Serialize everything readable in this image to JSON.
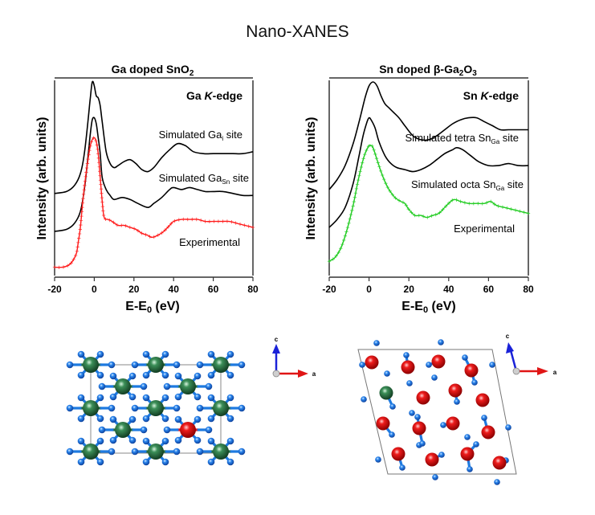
{
  "figure": {
    "title": "Nano-XANES"
  },
  "chart_data": [
    {
      "type": "line",
      "title": "Ga doped SnO2",
      "title_main": "Ga doped SnO",
      "title_sub": "2",
      "edge_label_prefix": "Ga ",
      "edge_label_italic": "K",
      "edge_label_suffix": "-edge",
      "xlabel_main": "E-E",
      "xlabel_sub": "0",
      "xlabel_suffix": " (eV)",
      "xlabel": "E-E0 (eV)",
      "ylabel": "Intensity (arb. units)",
      "xlim": [
        -20,
        80
      ],
      "ylim": [
        0,
        1
      ],
      "xticks": [
        "-20",
        "0",
        "20",
        "40",
        "60",
        "80"
      ],
      "xtick_values": [
        -20,
        0,
        20,
        40,
        60,
        80
      ],
      "grid": false,
      "series": [
        {
          "name": "Simulated Gai site",
          "label_main": "Simulated Ga",
          "label_sub": "i",
          "label_suffix": " site",
          "color": "#000000",
          "marker": "none",
          "x": [
            -20,
            -14,
            -10,
            -7,
            -5,
            -3,
            -2,
            -1,
            0,
            1,
            2,
            3,
            4,
            6,
            8,
            10,
            12,
            15,
            18,
            21,
            24,
            27,
            30,
            34,
            38,
            42,
            46,
            50,
            55,
            60,
            65,
            70,
            75,
            80
          ],
          "y": [
            0.42,
            0.43,
            0.46,
            0.52,
            0.62,
            0.8,
            0.9,
            0.98,
            0.96,
            0.91,
            0.9,
            0.86,
            0.78,
            0.63,
            0.57,
            0.55,
            0.56,
            0.58,
            0.59,
            0.57,
            0.54,
            0.53,
            0.55,
            0.6,
            0.64,
            0.67,
            0.66,
            0.63,
            0.62,
            0.62,
            0.62,
            0.62,
            0.62,
            0.63
          ]
        },
        {
          "name": "Simulated GaSn site",
          "label_main": "Simulated Ga",
          "label_sub": "Sn",
          "label_suffix": " site",
          "color": "#000000",
          "marker": "none",
          "x": [
            -20,
            -14,
            -10,
            -7,
            -5,
            -3,
            -2,
            -1,
            0,
            1,
            2,
            3,
            4,
            6,
            8,
            10,
            14,
            18,
            22,
            27,
            30,
            34,
            38,
            40,
            44,
            48,
            52,
            56,
            60,
            65,
            70,
            75,
            80
          ],
          "y": [
            0.23,
            0.24,
            0.27,
            0.33,
            0.44,
            0.62,
            0.72,
            0.79,
            0.8,
            0.77,
            0.7,
            0.62,
            0.5,
            0.44,
            0.41,
            0.39,
            0.4,
            0.39,
            0.37,
            0.35,
            0.37,
            0.4,
            0.44,
            0.45,
            0.44,
            0.45,
            0.44,
            0.43,
            0.43,
            0.43,
            0.42,
            0.41,
            0.41
          ]
        },
        {
          "name": "Experimental",
          "label_main": "Experimental",
          "label_sub": "",
          "label_suffix": "",
          "color": "#ff1a1a",
          "marker": "plus",
          "x": [
            -20,
            -16,
            -13,
            -11,
            -9,
            -8,
            -7,
            -6,
            -5,
            -4,
            -3,
            -2,
            -1,
            0,
            1,
            2,
            3,
            4,
            5,
            7,
            9,
            12,
            15,
            18,
            21,
            24,
            27,
            29,
            32,
            35,
            38,
            40,
            44,
            48,
            52,
            56,
            60,
            64,
            68,
            72,
            76,
            80
          ],
          "y": [
            0.05,
            0.05,
            0.06,
            0.08,
            0.12,
            0.18,
            0.25,
            0.36,
            0.45,
            0.53,
            0.6,
            0.66,
            0.69,
            0.7,
            0.68,
            0.62,
            0.5,
            0.38,
            0.3,
            0.29,
            0.28,
            0.26,
            0.26,
            0.25,
            0.24,
            0.22,
            0.21,
            0.2,
            0.21,
            0.23,
            0.26,
            0.28,
            0.29,
            0.29,
            0.29,
            0.28,
            0.28,
            0.28,
            0.28,
            0.27,
            0.26,
            0.25
          ]
        }
      ]
    },
    {
      "type": "line",
      "title": "Sn doped β-Ga2O3",
      "title_main": "Sn doped β-Ga",
      "title_sub": "2",
      "title_mid": "O",
      "title_sub2": "3",
      "edge_label_prefix": "Sn ",
      "edge_label_italic": "K",
      "edge_label_suffix": "-edge",
      "xlabel_main": "E-E",
      "xlabel_sub": "0",
      "xlabel_suffix": " (eV)",
      "xlabel": "E-E0 (eV)",
      "ylabel": "Intensity (arb. units)",
      "xlim": [
        -20,
        80
      ],
      "ylim": [
        0,
        1
      ],
      "xticks": [
        "-20",
        "0",
        "20",
        "40",
        "60",
        "80"
      ],
      "xtick_values": [
        -20,
        0,
        20,
        40,
        60,
        80
      ],
      "grid": false,
      "series": [
        {
          "name": "Simulated tetra SnGa site",
          "label_main": "Simulated tetra Sn",
          "label_sub": "Ga",
          "label_suffix": " site",
          "color": "#000000",
          "marker": "none",
          "x": [
            -20,
            -16,
            -12,
            -8,
            -5,
            -2,
            0,
            2,
            4,
            6,
            8,
            10,
            12,
            15,
            18,
            22,
            26,
            30,
            34,
            38,
            42,
            46,
            50,
            54,
            58,
            62,
            66,
            70,
            75,
            80
          ],
          "y": [
            0.44,
            0.49,
            0.56,
            0.67,
            0.78,
            0.9,
            0.96,
            0.98,
            0.96,
            0.91,
            0.87,
            0.85,
            0.83,
            0.8,
            0.76,
            0.71,
            0.69,
            0.69,
            0.71,
            0.74,
            0.77,
            0.79,
            0.8,
            0.8,
            0.78,
            0.76,
            0.74,
            0.74,
            0.74,
            0.74
          ]
        },
        {
          "name": "Simulated octa SnGa site",
          "label_main": "Simulated octa Sn",
          "label_sub": "Ga",
          "label_suffix": " site",
          "color": "#000000",
          "marker": "none",
          "x": [
            -20,
            -16,
            -12,
            -8,
            -5,
            -3,
            -1,
            0,
            1,
            3,
            5,
            8,
            11,
            14,
            18,
            22,
            26,
            30,
            34,
            38,
            42,
            44,
            47,
            51,
            55,
            60,
            65,
            70,
            75,
            80
          ],
          "y": [
            0.25,
            0.29,
            0.35,
            0.47,
            0.61,
            0.71,
            0.78,
            0.8,
            0.79,
            0.75,
            0.68,
            0.61,
            0.57,
            0.55,
            0.54,
            0.53,
            0.54,
            0.56,
            0.59,
            0.62,
            0.64,
            0.65,
            0.64,
            0.61,
            0.58,
            0.56,
            0.56,
            0.57,
            0.56,
            0.56
          ]
        },
        {
          "name": "Experimental",
          "label_main": "Experimental",
          "label_sub": "",
          "label_suffix": "",
          "color": "#22cc22",
          "marker": "plus",
          "x": [
            -20,
            -17,
            -14,
            -11,
            -8,
            -6,
            -4,
            -2,
            0,
            1,
            2,
            4,
            6,
            8,
            10,
            13,
            16,
            18,
            20,
            23,
            26,
            29,
            32,
            35,
            38,
            41,
            43,
            46,
            50,
            54,
            58,
            61,
            64,
            68,
            72,
            76,
            80
          ],
          "y": [
            0.08,
            0.1,
            0.15,
            0.24,
            0.36,
            0.46,
            0.55,
            0.62,
            0.66,
            0.66,
            0.65,
            0.59,
            0.53,
            0.48,
            0.44,
            0.4,
            0.38,
            0.37,
            0.34,
            0.31,
            0.31,
            0.3,
            0.31,
            0.32,
            0.35,
            0.38,
            0.39,
            0.38,
            0.37,
            0.37,
            0.37,
            0.38,
            0.36,
            0.35,
            0.34,
            0.33,
            0.32
          ]
        }
      ]
    }
  ],
  "structures": [
    {
      "name": "Ga doped SnO2 supercell",
      "host_cation_color": "#1f6b3a",
      "dopant_color": "#e8141c",
      "oxygen_color": "#1e7ae0",
      "axes": {
        "up_label": "c",
        "right_label": "a"
      }
    },
    {
      "name": "Sn doped beta-Ga2O3 cell",
      "host_cation_color": "#e8141c",
      "dopant_color": "#1f6b3a",
      "oxygen_color": "#1e7ae0",
      "axes": {
        "up_label": "c",
        "right_label": "a"
      }
    }
  ]
}
